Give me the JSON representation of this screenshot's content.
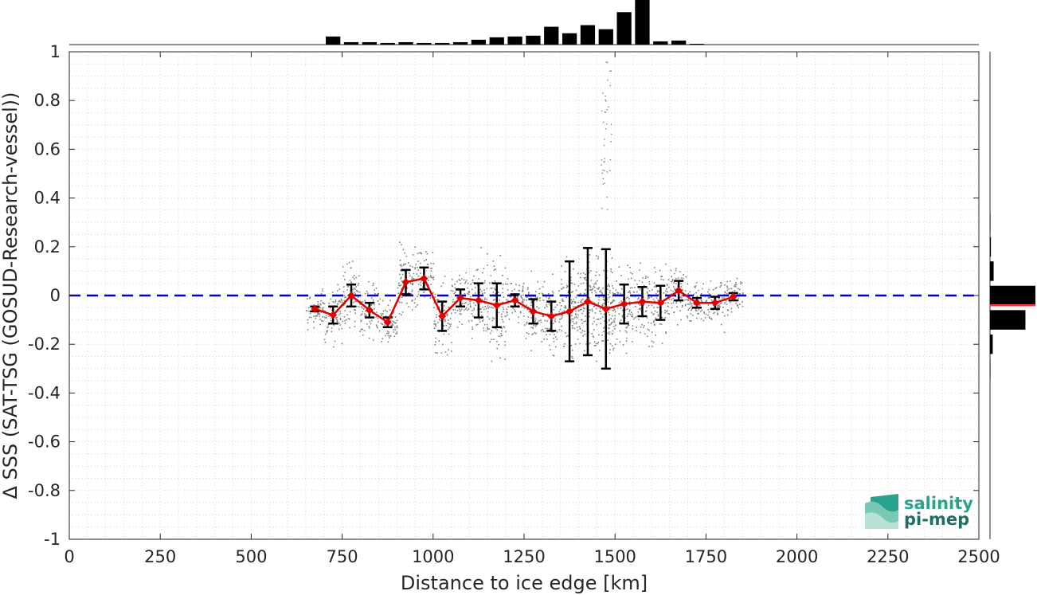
{
  "chart_data": {
    "type": "scatter",
    "xlabel": "Distance to ice edge [km]",
    "ylabel": "Δ SSS (SAT-TSG (GOSUD-Research-vessel))",
    "xlim": [
      0,
      2500
    ],
    "ylim": [
      -1,
      1
    ],
    "x_ticks": [
      0,
      250,
      500,
      750,
      1000,
      1250,
      1500,
      1750,
      2000,
      2250,
      2500
    ],
    "y_ticks": [
      -1,
      -0.8,
      -0.6,
      -0.4,
      -0.2,
      0,
      0.2,
      0.4,
      0.6,
      0.8,
      1
    ],
    "y_tick_labels": [
      "-1",
      "-0.8",
      "-0.6",
      "-0.4",
      "-0.2",
      "0",
      "0.2",
      "0.4",
      "0.6",
      "0.8",
      "1"
    ],
    "grid": true,
    "zero_line": {
      "y": 0,
      "color": "#0000cc",
      "style": "dashed"
    },
    "binned_mean": {
      "color": "#e00000",
      "x": [
        675,
        725,
        775,
        825,
        875,
        925,
        975,
        1025,
        1075,
        1125,
        1175,
        1225,
        1275,
        1325,
        1375,
        1425,
        1475,
        1525,
        1575,
        1625,
        1675,
        1725,
        1775,
        1825
      ],
      "mean": [
        -0.055,
        -0.08,
        0.0,
        -0.06,
        -0.11,
        0.055,
        0.07,
        -0.085,
        -0.01,
        -0.02,
        -0.04,
        -0.02,
        -0.065,
        -0.085,
        -0.065,
        -0.025,
        -0.055,
        -0.035,
        -0.025,
        -0.03,
        0.02,
        -0.03,
        -0.03,
        -0.005
      ],
      "std": [
        0.01,
        0.035,
        0.045,
        0.03,
        0.02,
        0.05,
        0.045,
        0.06,
        0.035,
        0.07,
        0.09,
        0.025,
        0.05,
        0.06,
        0.205,
        0.22,
        0.245,
        0.08,
        0.06,
        0.07,
        0.04,
        0.02,
        0.025,
        0.015
      ]
    },
    "scatter_color": "#808080",
    "top_histogram": {
      "bins": [
        725,
        775,
        825,
        875,
        925,
        975,
        1025,
        1075,
        1125,
        1175,
        1225,
        1275,
        1325,
        1375,
        1425,
        1475,
        1525,
        1575,
        1625,
        1675,
        1725,
        1775
      ],
      "counts": [
        10,
        3,
        3,
        2,
        3,
        2,
        2,
        3,
        6,
        9,
        10,
        11,
        22,
        14,
        24,
        19,
        40,
        55,
        4,
        5,
        1,
        0
      ]
    },
    "right_histogram": {
      "bins": [
        0.3,
        0.2,
        0.1,
        0.0,
        -0.1,
        -0.2,
        -0.3
      ],
      "counts": [
        1,
        2,
        8,
        100,
        78,
        6,
        1
      ],
      "mean_line": {
        "y": -0.04,
        "color": "#ff3333"
      }
    }
  },
  "logo": {
    "line1": "salinity",
    "line2": "pi-mep"
  }
}
